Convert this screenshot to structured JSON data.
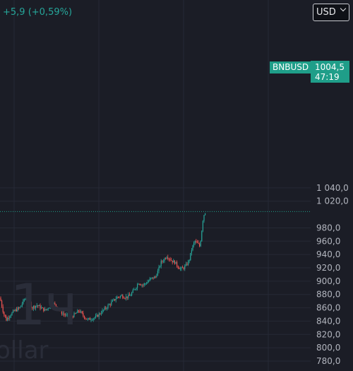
{
  "header": {
    "change_text": "+5,9 (+0,59%)",
    "currency": "USD"
  },
  "price_tag": {
    "symbol": "BNBUSD",
    "price": "1004,5",
    "countdown": "47:19"
  },
  "watermark": {
    "interval": "1ч",
    "quote": "ollar"
  },
  "colors": {
    "background": "#1b1d26",
    "up": "#26a69a",
    "down": "#ef5350",
    "accent": "#1f9e89",
    "axis_text": "#b2b5be"
  },
  "chart_data": {
    "type": "candlestick",
    "symbol": "BNBUSD",
    "interval": "1ч",
    "y_axis": {
      "ticks": [
        "780,0",
        "800,0",
        "820,0",
        "840,0",
        "860,0",
        "880,0",
        "900,0",
        "920,0",
        "940,0",
        "960,0",
        "980,0",
        "1 020,0",
        "1 040,0"
      ],
      "range": [
        775,
        1043
      ]
    },
    "last_price": 1004.5,
    "trend_points": [
      [
        0,
        875
      ],
      [
        5,
        852
      ],
      [
        9,
        842
      ],
      [
        13,
        848
      ],
      [
        20,
        855
      ],
      [
        28,
        860
      ],
      [
        34,
        872
      ],
      [
        40,
        876
      ],
      [
        45,
        860
      ],
      [
        52,
        864
      ],
      [
        58,
        860
      ],
      [
        64,
        856
      ],
      [
        70,
        862
      ],
      [
        76,
        866
      ],
      [
        82,
        860
      ],
      [
        88,
        852
      ],
      [
        94,
        848
      ],
      [
        100,
        846
      ],
      [
        106,
        850
      ],
      [
        112,
        856
      ],
      [
        118,
        848
      ],
      [
        124,
        842
      ],
      [
        130,
        844
      ],
      [
        136,
        846
      ],
      [
        142,
        852
      ],
      [
        148,
        858
      ],
      [
        154,
        864
      ],
      [
        160,
        870
      ],
      [
        166,
        876
      ],
      [
        172,
        878
      ],
      [
        178,
        876
      ],
      [
        184,
        878
      ],
      [
        188,
        884
      ],
      [
        192,
        890
      ],
      [
        196,
        898
      ],
      [
        202,
        894
      ],
      [
        208,
        898
      ],
      [
        214,
        904
      ],
      [
        220,
        906
      ],
      [
        224,
        916
      ],
      [
        228,
        928
      ],
      [
        232,
        932
      ],
      [
        236,
        938
      ],
      [
        240,
        934
      ],
      [
        244,
        930
      ],
      [
        248,
        928
      ],
      [
        252,
        922
      ],
      [
        256,
        918
      ],
      [
        260,
        920
      ],
      [
        264,
        924
      ],
      [
        268,
        932
      ],
      [
        272,
        950
      ],
      [
        276,
        960
      ],
      [
        280,
        956
      ],
      [
        283,
        952
      ],
      [
        285,
        968
      ],
      [
        287,
        990
      ],
      [
        289,
        1000
      ],
      [
        291,
        1004.5
      ]
    ]
  }
}
